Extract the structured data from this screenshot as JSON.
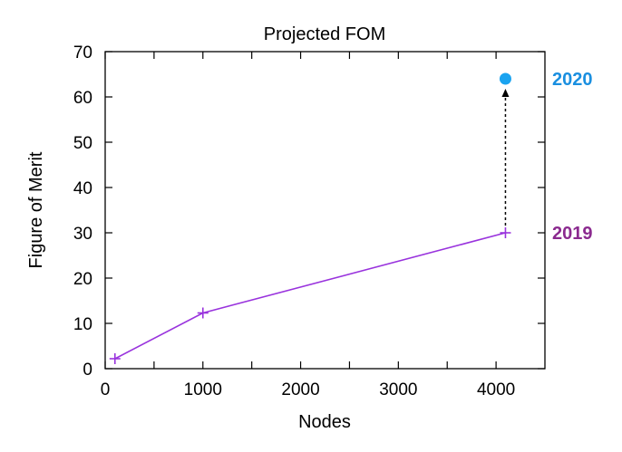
{
  "chart_data": {
    "type": "line",
    "title": "Projected FOM",
    "xlabel": "Nodes",
    "ylabel": "Figure of Merit",
    "xlim": [
      0,
      4500
    ],
    "ylim": [
      0,
      70
    ],
    "x_ticks": [
      0,
      1000,
      2000,
      3000,
      4000
    ],
    "x_minor_ticks": [
      500,
      1500,
      2500,
      3500
    ],
    "y_ticks": [
      0,
      10,
      20,
      30,
      40,
      50,
      60,
      70
    ],
    "grid": false,
    "series": [
      {
        "color": "#9933dd",
        "marker": "plus",
        "x": [
          100,
          1000,
          4096
        ],
        "y": [
          2.2,
          12.3,
          30.0
        ]
      }
    ],
    "projected_point": {
      "x": 4096,
      "y": 64.0,
      "color": "#1aa3f0",
      "marker": "circle"
    },
    "arrow": {
      "from": [
        4096,
        30.0
      ],
      "to": [
        4096,
        64.0
      ],
      "style": "dashed",
      "color": "#000000"
    },
    "annotations": [
      {
        "text": "2020",
        "color": "#1a8fe0",
        "anchor_y": 64.0
      },
      {
        "text": "2019",
        "color": "#8b2a8f",
        "anchor_y": 30.0
      }
    ]
  }
}
